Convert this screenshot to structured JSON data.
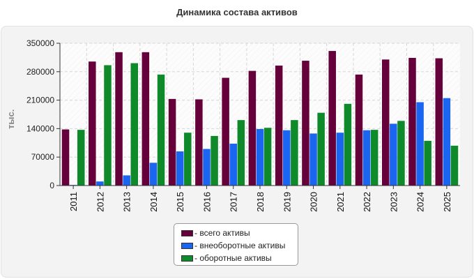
{
  "chart_data": {
    "type": "bar",
    "title": "Динамика состава активов",
    "ylabel": "тыс.",
    "xlabel": "",
    "ylim": [
      0,
      350000
    ],
    "yticks": [
      0,
      70000,
      140000,
      210000,
      280000,
      350000
    ],
    "grid": true,
    "legend_position": "bottom",
    "categories": [
      "2011",
      "2012",
      "2013",
      "2014",
      "2015",
      "2016",
      "2017",
      "2018",
      "2019",
      "2020",
      "2021",
      "2022",
      "2023",
      "2024",
      "2025"
    ],
    "series": [
      {
        "name": "- всего активы",
        "color": "#66003a",
        "values": [
          138000,
          305000,
          328000,
          328000,
          213000,
          212000,
          265000,
          282000,
          295000,
          307000,
          331000,
          273000,
          310000,
          314000,
          313000
        ]
      },
      {
        "name": "- внеоборотные активы",
        "color": "#1a66f0",
        "values": [
          1500,
          10000,
          25000,
          56000,
          84000,
          90000,
          103000,
          139000,
          136000,
          128000,
          130000,
          136000,
          152000,
          205000,
          215000
        ]
      },
      {
        "name": "- оборотные активы",
        "color": "#0e8a2a",
        "values": [
          137000,
          296000,
          301000,
          273000,
          130000,
          122000,
          161000,
          142000,
          161000,
          179000,
          201000,
          137000,
          159000,
          110000,
          98000
        ]
      }
    ]
  }
}
